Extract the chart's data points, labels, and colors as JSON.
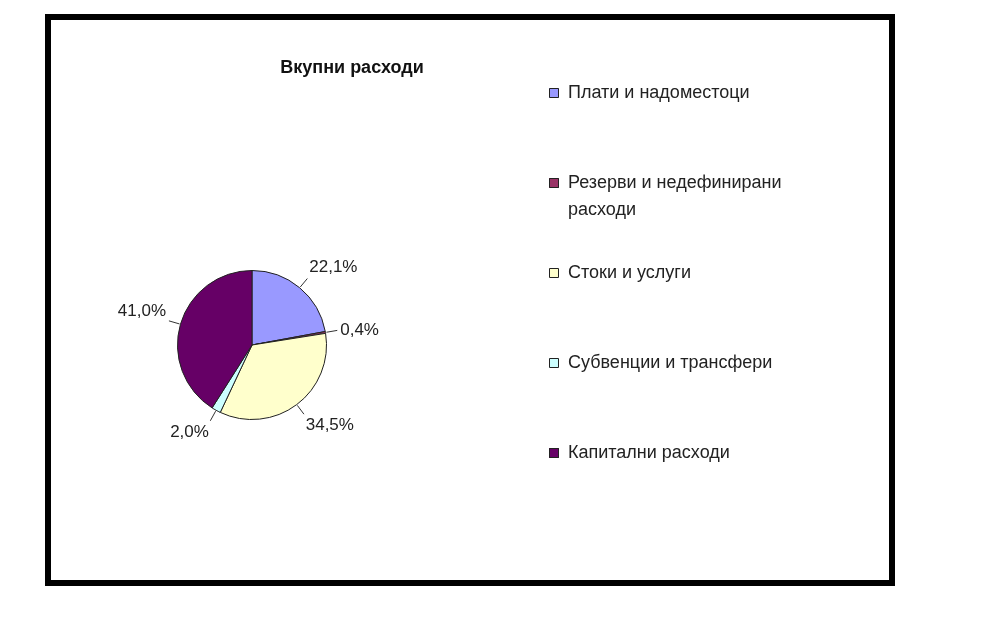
{
  "chart_data": {
    "type": "pie",
    "title": "Вкупни расходи",
    "categories": [
      "Плати и надоместоци",
      "Резерви и недефинирани расходи",
      "Стоки и услуги",
      "Субвенции и трансфери",
      "Капитални расходи"
    ],
    "values": [
      22.1,
      0.4,
      34.5,
      2.0,
      41.0
    ],
    "value_labels": [
      "22,1%",
      "0,4%",
      "34,5%",
      "2,0%",
      "41,0%"
    ],
    "colors": [
      "#9999ff",
      "#993366",
      "#ffffcc",
      "#ccffff",
      "#660066"
    ],
    "legend": "right"
  }
}
